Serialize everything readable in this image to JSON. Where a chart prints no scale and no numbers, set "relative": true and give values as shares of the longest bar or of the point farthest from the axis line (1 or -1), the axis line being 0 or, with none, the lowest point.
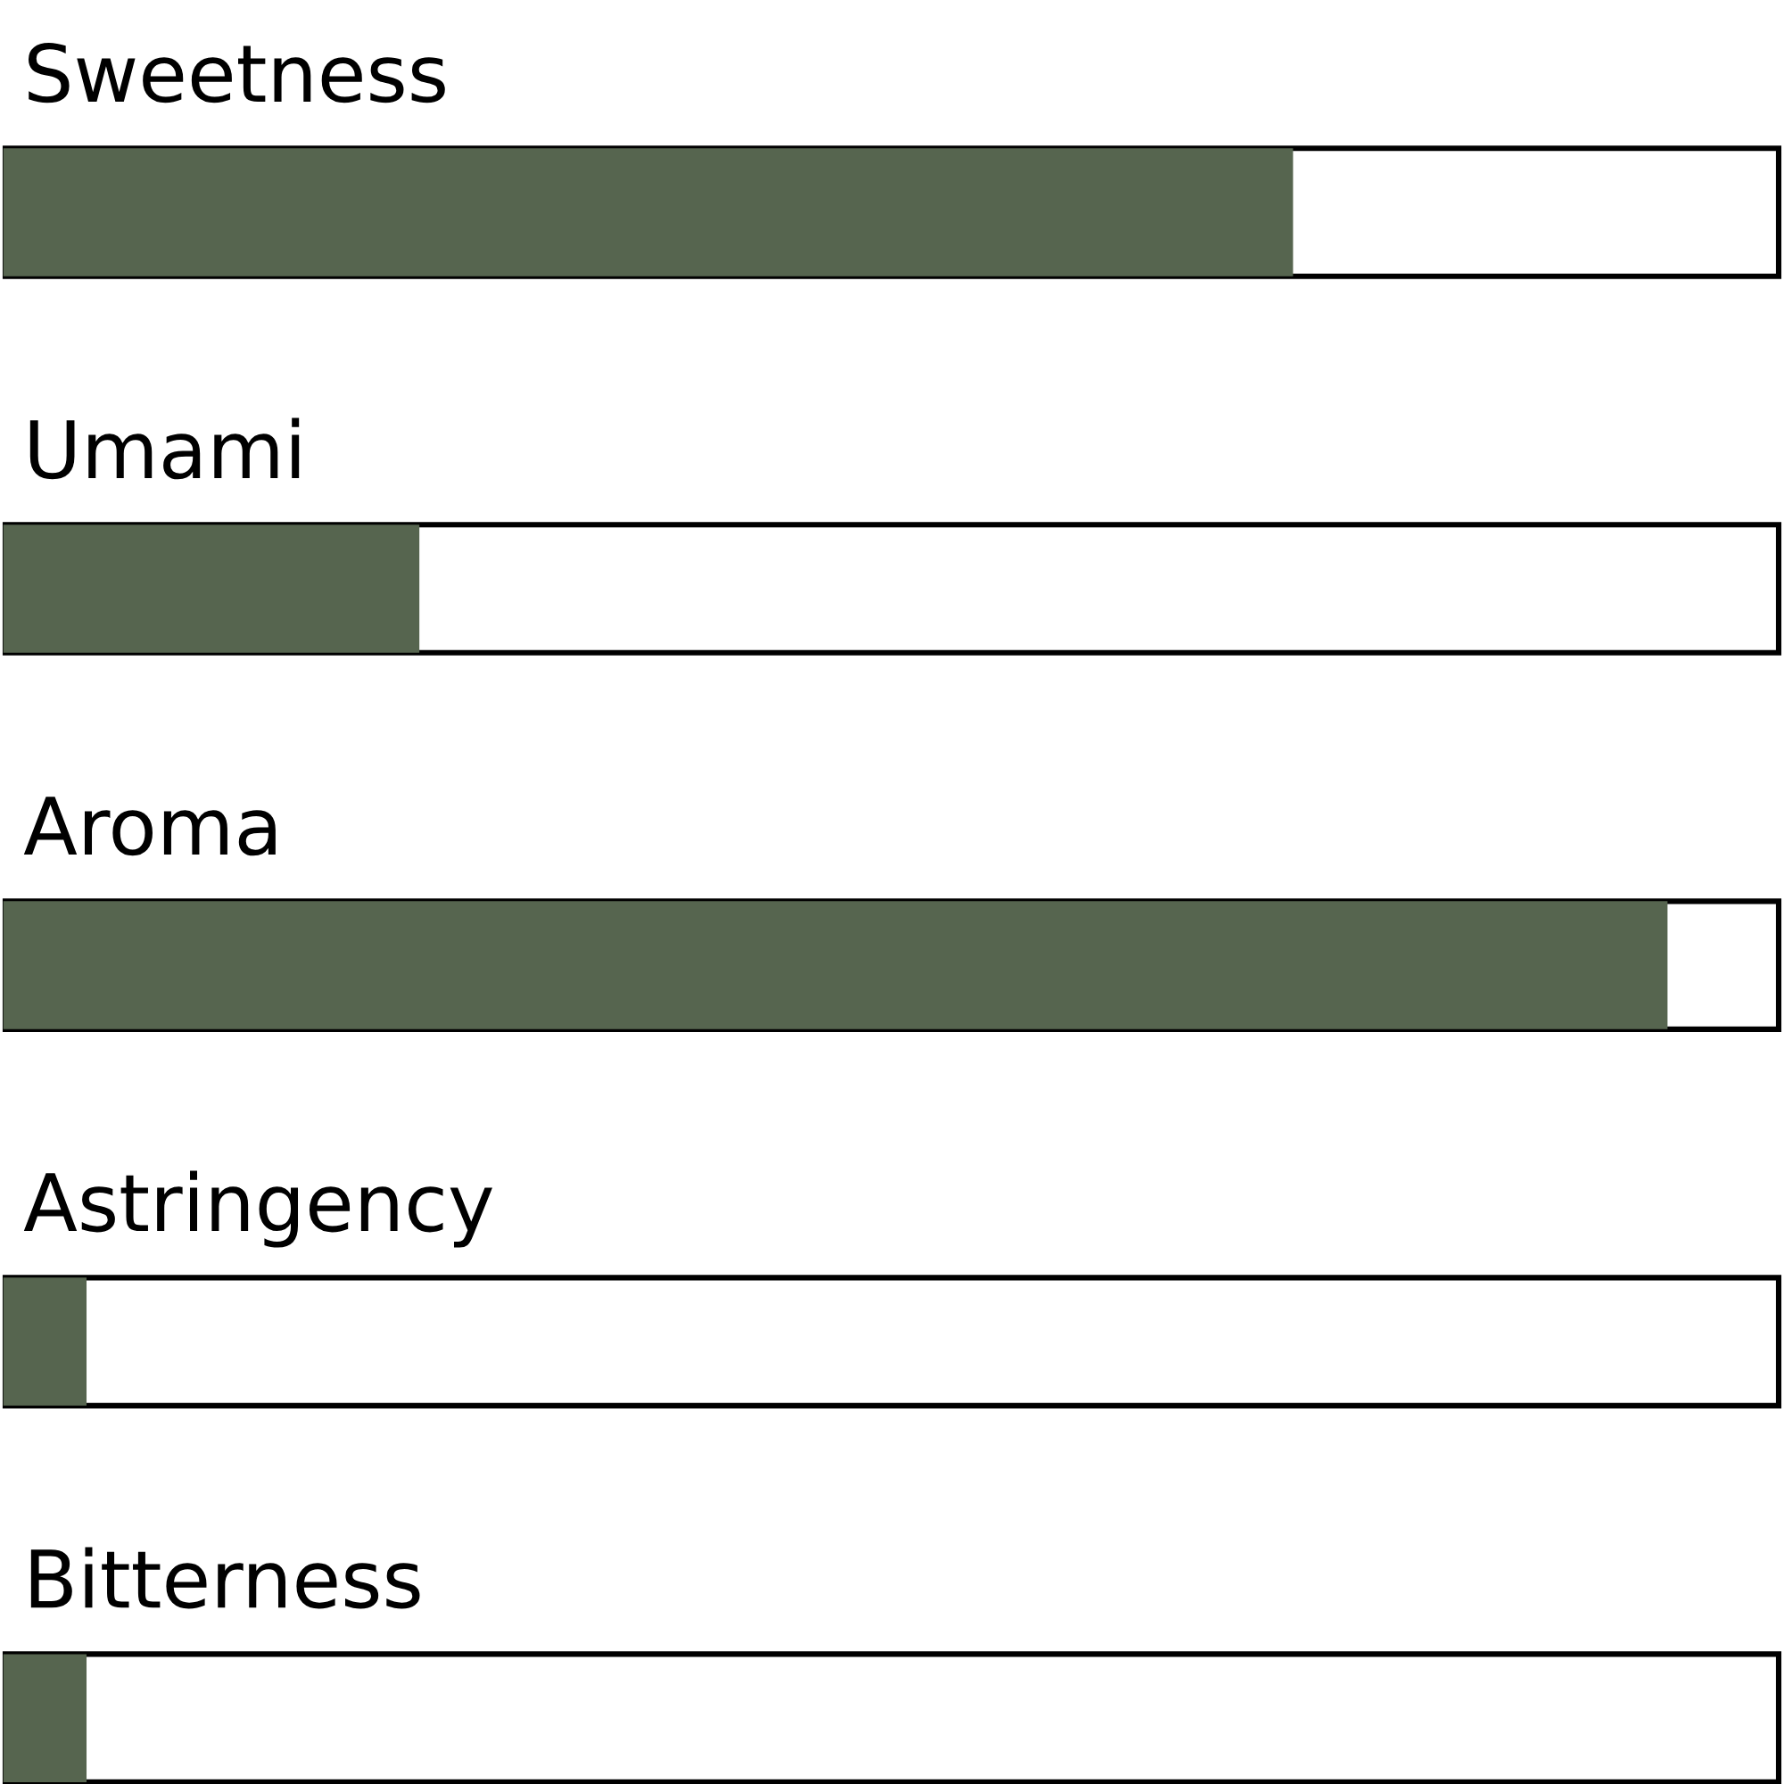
{
  "chart_data": {
    "type": "bar",
    "orientation": "horizontal",
    "relative": true,
    "categories": [
      "Sweetness",
      "Umami",
      "Aroma",
      "Astringency",
      "Bitterness"
    ],
    "values": [
      0.775,
      0.25,
      1,
      0.05,
      0.05
    ],
    "color": "#56654f"
  }
}
